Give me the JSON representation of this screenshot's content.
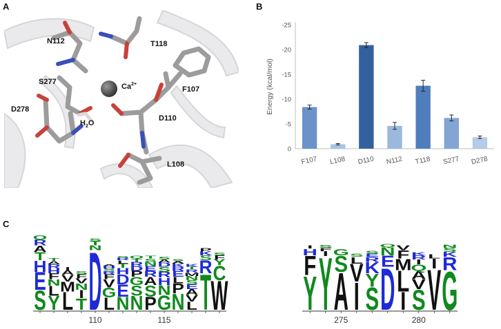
{
  "panels": {
    "a": "A",
    "b": "B",
    "c": "C"
  },
  "structure": {
    "labels": [
      "N112",
      "T118",
      "S277",
      "F107",
      "D278",
      "D110",
      "L108"
    ],
    "ion": "Ca",
    "ion_charge": "2+",
    "water": "H",
    "water_sub": "2",
    "water_tail": "O"
  },
  "chart_data": {
    "type": "bar",
    "categories": [
      "F107",
      "L108",
      "D110",
      "N112",
      "T118",
      "S277",
      "D278"
    ],
    "values": [
      -8.4,
      -0.9,
      -20.9,
      -4.6,
      -12.7,
      -6.2,
      -2.3
    ],
    "errors": [
      0.4,
      0.15,
      0.5,
      0.7,
      1.1,
      0.6,
      0.25
    ],
    "colors": [
      "#6b92c9",
      "#a9c3e6",
      "#34619e",
      "#9bb8df",
      "#4f7dbd",
      "#82a5d5",
      "#b4cbe9"
    ],
    "ylabel": "Energy (kcal/mol)",
    "yticks": [
      0,
      -5,
      -10,
      -15,
      -20,
      -25
    ],
    "ylim": [
      0,
      -25
    ],
    "grid": false
  },
  "logo_data": {
    "left": {
      "ticks": [
        "110",
        "115"
      ],
      "columns": [
        {
          "letters": [
            "S",
            "E",
            "H",
            "T",
            "A",
            "R",
            "Q"
          ],
          "heights": [
            0.24,
            0.22,
            0.14,
            0.1,
            0.08,
            0.07,
            0.05
          ]
        },
        {
          "letters": [
            "Y",
            "L",
            "N",
            "F",
            "H",
            "R",
            "A",
            "T"
          ],
          "heights": [
            0.17,
            0.12,
            0.08,
            0.07,
            0.06,
            0.05,
            0.04,
            0.03
          ]
        },
        {
          "letters": [
            "L",
            "M",
            "V",
            "A",
            "I"
          ],
          "heights": [
            0.22,
            0.12,
            0.08,
            0.06,
            0.04
          ]
        },
        {
          "letters": [
            "T",
            "I",
            "N",
            "V",
            "F",
            "S"
          ],
          "heights": [
            0.14,
            0.1,
            0.08,
            0.06,
            0.05,
            0.04
          ]
        },
        {
          "letters": [
            "D",
            "N",
            "T",
            "S"
          ],
          "heights": [
            0.72,
            0.06,
            0.05,
            0.03
          ]
        },
        {
          "letters": [
            "L",
            "G",
            "V",
            "F",
            "R",
            "S",
            "H",
            "A"
          ],
          "heights": [
            0.15,
            0.12,
            0.1,
            0.06,
            0.04,
            0.03,
            0.03,
            0.02
          ]
        },
        {
          "letters": [
            "N",
            "E",
            "D",
            "H",
            "T",
            "L",
            "R",
            "S"
          ],
          "heights": [
            0.16,
            0.15,
            0.12,
            0.08,
            0.05,
            0.04,
            0.03,
            0.02
          ]
        },
        {
          "letters": [
            "N",
            "S",
            "G",
            "P",
            "D",
            "R",
            "T",
            "Q"
          ],
          "heights": [
            0.17,
            0.13,
            0.1,
            0.07,
            0.06,
            0.05,
            0.04,
            0.03
          ]
        },
        {
          "letters": [
            "P",
            "S",
            "A",
            "R",
            "E",
            "N",
            "S",
            "T"
          ],
          "heights": [
            0.16,
            0.14,
            0.1,
            0.07,
            0.06,
            0.05,
            0.04,
            0.03
          ]
        },
        {
          "letters": [
            "G",
            "N",
            "H",
            "R",
            "S",
            "D",
            "A",
            "S"
          ],
          "heights": [
            0.18,
            0.12,
            0.09,
            0.07,
            0.06,
            0.05,
            0.04,
            0.03
          ]
        },
        {
          "letters": [
            "N",
            "P",
            "L",
            "E",
            "R",
            "K",
            "A",
            "S"
          ],
          "heights": [
            0.2,
            0.12,
            0.08,
            0.07,
            0.05,
            0.04,
            0.03,
            0.02
          ]
        },
        {
          "letters": [
            "L",
            "V",
            "A",
            "E",
            "S",
            "N",
            "M",
            "R",
            "T",
            "K"
          ],
          "heights": [
            0.1,
            0.08,
            0.07,
            0.06,
            0.05,
            0.05,
            0.04,
            0.04,
            0.03,
            0.03
          ]
        },
        {
          "letters": [
            "T",
            "R",
            "S",
            "K",
            "P"
          ],
          "heights": [
            0.44,
            0.16,
            0.06,
            0.05,
            0.04
          ]
        },
        {
          "letters": [
            "W",
            "C",
            "Y",
            "F",
            "S"
          ],
          "heights": [
            0.36,
            0.18,
            0.07,
            0.05,
            0.03
          ]
        }
      ]
    },
    "right": {
      "ticks": [
        "275",
        "280"
      ],
      "columns": [
        {
          "letters": [
            "Y",
            "F",
            "H",
            "I"
          ],
          "heights": [
            0.42,
            0.24,
            0.08,
            0.04
          ]
        },
        {
          "letters": [
            "Y",
            "I",
            "F",
            "S"
          ],
          "heights": [
            0.65,
            0.06,
            0.04,
            0.03
          ]
        },
        {
          "letters": [
            "A",
            "S",
            "G"
          ],
          "heights": [
            0.46,
            0.2,
            0.08
          ]
        },
        {
          "letters": [
            "I",
            "V",
            "L",
            "S"
          ],
          "heights": [
            0.34,
            0.22,
            0.08,
            0.04
          ]
        },
        {
          "letters": [
            "S",
            "Y",
            "K",
            "R",
            "E",
            "S"
          ],
          "heights": [
            0.28,
            0.16,
            0.14,
            0.06,
            0.04,
            0.03
          ]
        },
        {
          "letters": [
            "D",
            "E",
            "N",
            "Q"
          ],
          "heights": [
            0.52,
            0.14,
            0.1,
            0.04
          ]
        },
        {
          "letters": [
            "I",
            "L",
            "M",
            "F",
            "V"
          ],
          "heights": [
            0.22,
            0.26,
            0.14,
            0.1,
            0.06
          ]
        },
        {
          "letters": [
            "S",
            "V",
            "A",
            "Q",
            "I",
            "R",
            "K"
          ],
          "heights": [
            0.25,
            0.12,
            0.1,
            0.08,
            0.06,
            0.05,
            0.04
          ]
        },
        {
          "letters": [
            "V",
            "I",
            "L"
          ],
          "heights": [
            0.5,
            0.12,
            0.05
          ]
        },
        {
          "letters": [
            "G",
            "R",
            "K",
            "S",
            "N"
          ],
          "heights": [
            0.48,
            0.16,
            0.06,
            0.05,
            0.04
          ]
        }
      ]
    }
  },
  "aa_colors": {
    "hydrophobic": "#111111",
    "polar": "#11891f",
    "charged": "#1f2ad6",
    "small": "#111111"
  }
}
